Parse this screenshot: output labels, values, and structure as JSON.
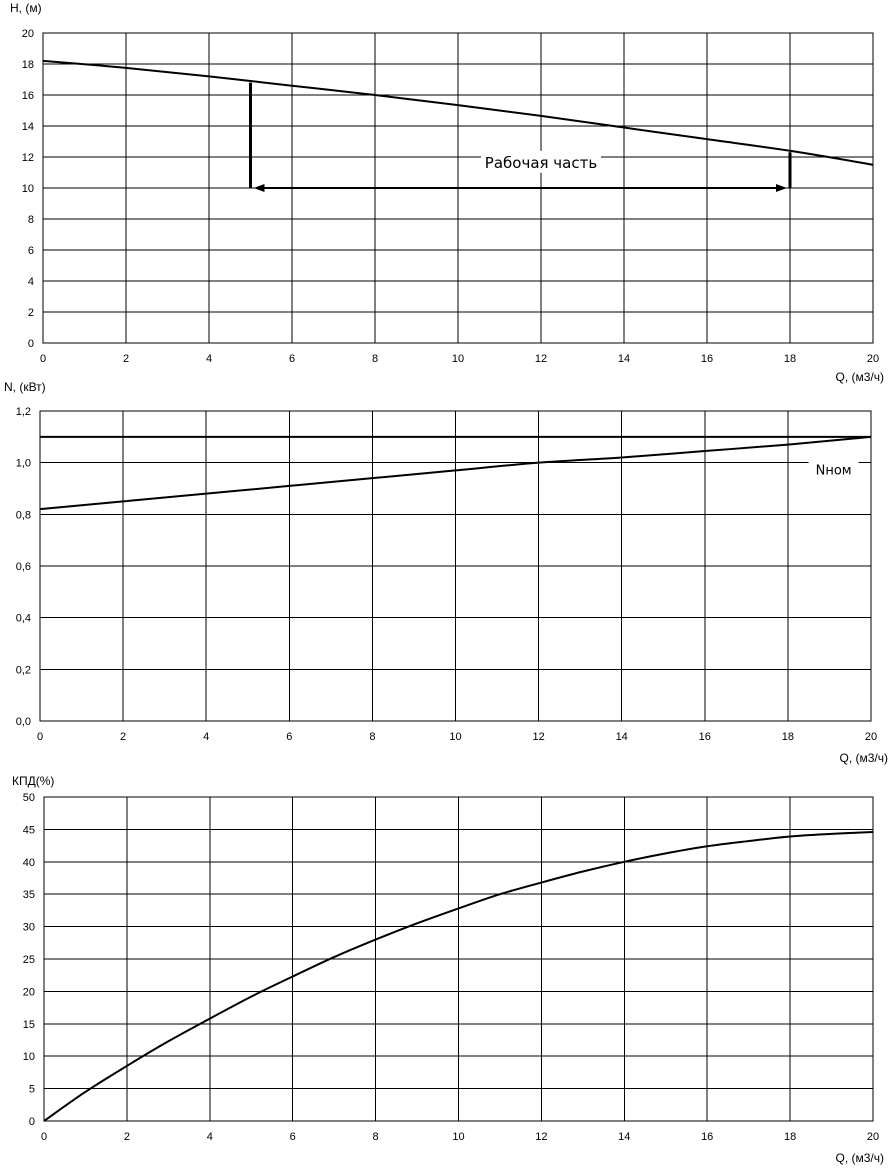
{
  "chart_data": [
    {
      "type": "line",
      "ylabel": "H, (м)",
      "xlabel": "Q, (м3/ч)",
      "xlim": [
        0,
        20
      ],
      "ylim": [
        0,
        20
      ],
      "xticks": [
        0,
        2,
        4,
        6,
        8,
        10,
        12,
        14,
        16,
        18,
        20
      ],
      "yticks": [
        0,
        2,
        4,
        6,
        8,
        10,
        12,
        14,
        16,
        18,
        20
      ],
      "x_tick_labels": [
        "0",
        "2",
        "4",
        "6",
        "8",
        "10",
        "12",
        "14",
        "16",
        "18",
        "20"
      ],
      "y_tick_labels": [
        "0",
        "2",
        "4",
        "6",
        "8",
        "10",
        "12",
        "14",
        "16",
        "18",
        "20"
      ],
      "grid": true,
      "series": [
        {
          "x": [
            0,
            2,
            4,
            6,
            8,
            10,
            12,
            14,
            16,
            18,
            20
          ],
          "y": [
            18.2,
            17.75,
            17.2,
            16.6,
            16.0,
            15.35,
            14.65,
            13.9,
            13.15,
            12.4,
            11.5
          ]
        }
      ],
      "annotation": {
        "text": "Рабочая часть",
        "x_range": [
          5,
          18
        ],
        "y": 10,
        "left_bar_top": 16.8,
        "right_bar_top": 12.3,
        "label_pos": [
          12.0,
          11.5
        ]
      }
    },
    {
      "type": "line",
      "ylabel": "N, (кВт)",
      "xlabel": "Q, (м3/ч)",
      "xlim": [
        0,
        20
      ],
      "ylim": [
        0,
        1.2
      ],
      "xticks": [
        0,
        2,
        4,
        6,
        8,
        10,
        12,
        14,
        16,
        18,
        20
      ],
      "yticks": [
        0,
        0.2,
        0.4,
        0.6,
        0.8,
        1.0,
        1.2
      ],
      "x_tick_labels": [
        "0",
        "2",
        "4",
        "6",
        "8",
        "10",
        "12",
        "14",
        "16",
        "18",
        "20"
      ],
      "y_tick_labels": [
        "0,0",
        "0,2",
        "0,4",
        "0,6",
        "0,8",
        "1,0",
        "1,2"
      ],
      "grid": true,
      "series": [
        {
          "x": [
            0,
            2,
            4,
            6,
            8,
            10,
            12,
            14,
            16,
            18,
            20
          ],
          "y": [
            0.82,
            0.85,
            0.88,
            0.91,
            0.94,
            0.97,
            1.0,
            1.02,
            1.045,
            1.07,
            1.1
          ]
        },
        {
          "x": [
            0,
            20
          ],
          "y": [
            1.1,
            1.1
          ]
        }
      ],
      "annotation": {
        "text": "Nном",
        "pos": [
          19.1,
          0.97
        ]
      }
    },
    {
      "type": "line",
      "ylabel": "КПД(%)",
      "xlabel": "Q, (м3/ч)",
      "xlim": [
        0,
        20
      ],
      "ylim": [
        0,
        50
      ],
      "xticks": [
        0,
        2,
        4,
        6,
        8,
        10,
        12,
        14,
        16,
        18,
        20
      ],
      "yticks": [
        0,
        5,
        10,
        15,
        20,
        25,
        30,
        35,
        40,
        45,
        50
      ],
      "x_tick_labels": [
        "0",
        "2",
        "4",
        "6",
        "8",
        "10",
        "12",
        "14",
        "16",
        "18",
        "20"
      ],
      "y_tick_labels": [
        "0",
        "5",
        "10",
        "15",
        "20",
        "25",
        "30",
        "35",
        "40",
        "45",
        "50"
      ],
      "grid": true,
      "series": [
        {
          "x": [
            0,
            1,
            2,
            3,
            4,
            5,
            6,
            7,
            8,
            9,
            10,
            11,
            12,
            13,
            14,
            15,
            16,
            17,
            18,
            19,
            20
          ],
          "y": [
            0,
            4.5,
            8.5,
            12.3,
            15.8,
            19.2,
            22.3,
            25.3,
            28.0,
            30.5,
            32.8,
            35.0,
            36.8,
            38.5,
            40.0,
            41.3,
            42.4,
            43.2,
            43.9,
            44.3,
            44.6
          ]
        }
      ]
    }
  ]
}
